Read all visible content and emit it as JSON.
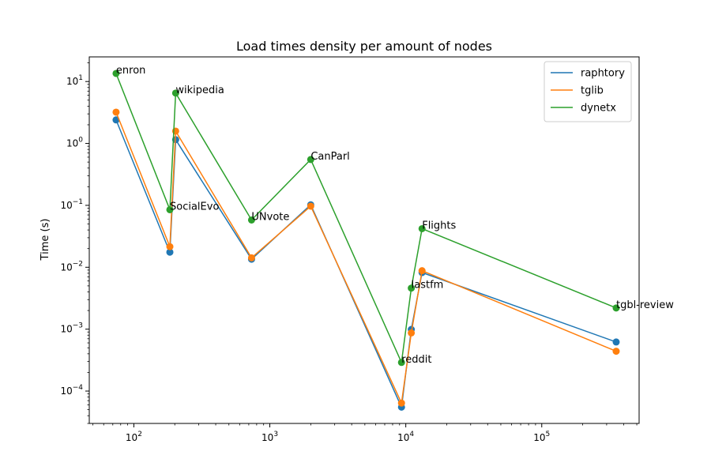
{
  "chart_data": {
    "type": "line",
    "title": "Load times density per amount of nodes",
    "xlabel": "",
    "ylabel": "Time (s)",
    "x_scale": "log",
    "y_scale": "log",
    "xlim": [
      47,
      520000
    ],
    "ylim": [
      3e-05,
      25
    ],
    "x_ticks": [
      {
        "base": "10",
        "exp": "2",
        "value": 100
      },
      {
        "base": "10",
        "exp": "3",
        "value": 1000
      },
      {
        "base": "10",
        "exp": "4",
        "value": 10000
      },
      {
        "base": "10",
        "exp": "5",
        "value": 100000
      }
    ],
    "y_ticks": [
      {
        "base": "10",
        "exp": "1",
        "value": 10
      },
      {
        "base": "10",
        "exp": "0",
        "value": 1
      },
      {
        "base": "10",
        "exp": "−1",
        "value": 0.1
      },
      {
        "base": "10",
        "exp": "−2",
        "value": 0.01
      },
      {
        "base": "10",
        "exp": "−3",
        "value": 0.001
      },
      {
        "base": "10",
        "exp": "−4",
        "value": 0.0001
      }
    ],
    "grid": false,
    "legend_position": "top-right",
    "colors": {
      "raphtory": "#1f77b4",
      "tglib": "#ff7f0e",
      "dynetx": "#2ca02c"
    },
    "x": [
      74,
      184,
      203,
      734,
      1999,
      9300,
      10978,
      13169,
      352637
    ],
    "annotations": [
      {
        "text": "enron",
        "x": 74,
        "y": 13.5
      },
      {
        "text": "SocialEvo",
        "x": 184,
        "y": 0.085
      },
      {
        "text": "wikipedia",
        "x": 203,
        "y": 6.5
      },
      {
        "text": "UNvote",
        "x": 734,
        "y": 0.058
      },
      {
        "text": "CanParl",
        "x": 1999,
        "y": 0.55
      },
      {
        "text": "reddit",
        "x": 9300,
        "y": 0.00029
      },
      {
        "text": "lastfm",
        "x": 10978,
        "y": 0.0046
      },
      {
        "text": "Flights",
        "x": 13169,
        "y": 0.042
      },
      {
        "text": "tgbl-review",
        "x": 352637,
        "y": 0.0022
      }
    ],
    "series": [
      {
        "name": "raphtory",
        "values": [
          2.4,
          0.0175,
          1.15,
          0.0135,
          0.102,
          5.5e-05,
          0.00099,
          0.0082,
          0.00062
        ]
      },
      {
        "name": "tglib",
        "values": [
          3.2,
          0.0215,
          1.58,
          0.0142,
          0.097,
          6.4e-05,
          0.00087,
          0.0088,
          0.00044
        ]
      },
      {
        "name": "dynetx",
        "values": [
          13.5,
          0.085,
          6.5,
          0.058,
          0.55,
          0.00029,
          0.0046,
          0.042,
          0.0022
        ]
      }
    ]
  }
}
